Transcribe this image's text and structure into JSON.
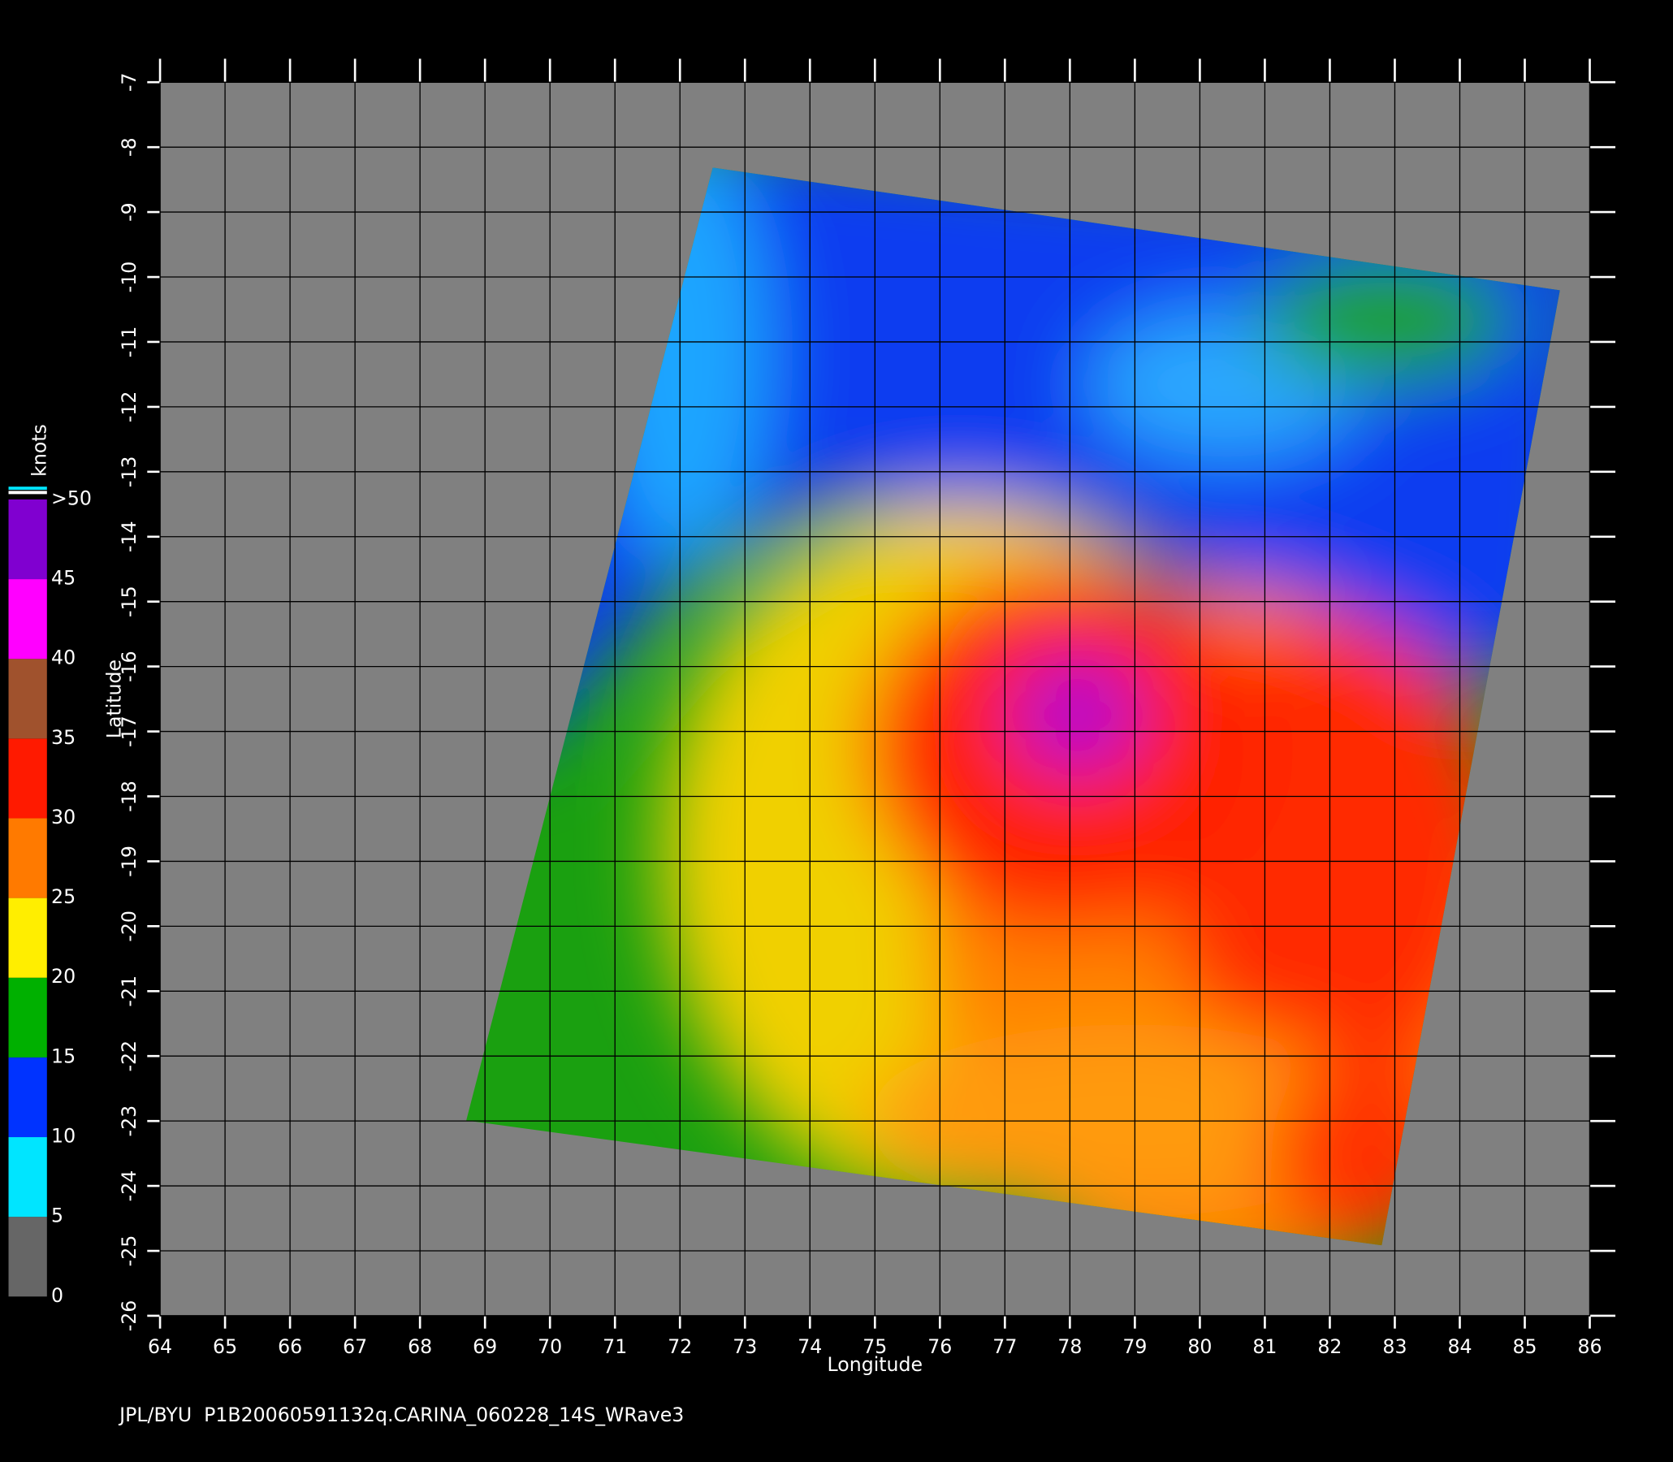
{
  "chart_data": {
    "type": "map",
    "title": "JPL/BYU  P1B20060591132q.CARINA_060228_14S_WRave3",
    "xlabel": "Longitude",
    "ylabel": "Latitude",
    "xlim": [
      64,
      86
    ],
    "ylim": [
      -26,
      -7
    ],
    "xticks": [
      64,
      65,
      66,
      67,
      68,
      69,
      70,
      71,
      72,
      73,
      74,
      75,
      76,
      77,
      78,
      79,
      80,
      81,
      82,
      83,
      84,
      85,
      86
    ],
    "yticks": [
      -26,
      -25,
      -24,
      -23,
      -22,
      -21,
      -20,
      -19,
      -18,
      -17,
      -16,
      -15,
      -14,
      -13,
      -12,
      -11,
      -10,
      -9,
      -8,
      -7
    ],
    "grid": true,
    "colorbar": {
      "label": "knots",
      "lim": [
        0,
        50
      ],
      "ticks": [
        0,
        5,
        10,
        15,
        20,
        25,
        30,
        35,
        40,
        45,
        {
          "value": 50,
          "label": ">50"
        }
      ],
      "colors": [
        "#666666",
        "#00e5ff",
        "#0033ff",
        "#00b000",
        "#ffee00",
        "#ff7a00",
        "#ff1a00",
        "#a0522d",
        "#ff00ff",
        "#8000d0"
      ]
    }
  }
}
